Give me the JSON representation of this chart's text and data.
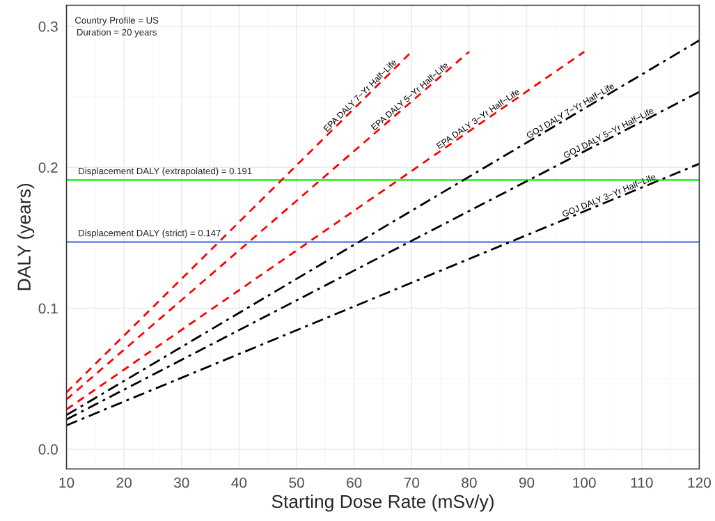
{
  "chart_data": {
    "type": "line",
    "xlabel": "Starting Dose Rate (mSv/y)",
    "ylabel": "DALY (years)",
    "xlim": [
      10,
      120
    ],
    "xticks": [
      10,
      20,
      30,
      40,
      50,
      60,
      70,
      80,
      90,
      100,
      110,
      120
    ],
    "ylim": [
      -0.014,
      0.315
    ],
    "yticks": [
      {
        "value": 0,
        "label": "0.0"
      },
      0.1,
      0.2,
      0.3
    ],
    "grid": true,
    "series": [
      {
        "name": "EPA DALY 7−Yr Half−Life",
        "color": "#ff0000",
        "line_style": "dashed",
        "x": [
          10,
          70
        ],
        "values": [
          0.0403,
          0.282
        ]
      },
      {
        "name": "EPA DALY 5−Yr Half−Life",
        "color": "#ff0000",
        "line_style": "dashed",
        "x": [
          10,
          80
        ],
        "values": [
          0.0353,
          0.282
        ]
      },
      {
        "name": "EPA DALY 3−Yr Half−Life",
        "color": "#ff0000",
        "line_style": "dashed",
        "x": [
          10,
          100
        ],
        "values": [
          0.0282,
          0.282
        ]
      },
      {
        "name": "GOJ DALY 7−Yr Half−Life",
        "color": "#000000",
        "line_style": "dashdot",
        "x": [
          10,
          120
        ],
        "values": [
          0.0242,
          0.29
        ]
      },
      {
        "name": "GOJ DALY 5−Yr Half−Life",
        "color": "#000000",
        "line_style": "dashdot",
        "x": [
          10,
          120
        ],
        "values": [
          0.0211,
          0.2535
        ]
      },
      {
        "name": "GOJ DALY 3−Yr Half−Life",
        "color": "#000000",
        "line_style": "dashdot",
        "x": [
          10,
          120
        ],
        "values": [
          0.0169,
          0.2025
        ]
      }
    ],
    "ref_lines": [
      {
        "axis": "y",
        "value": 0.191,
        "label": "Displacement DALY (extrapolated) = 0.191",
        "color": "#00ee00"
      },
      {
        "axis": "y",
        "value": 0.147,
        "label": "Displacement DALY (strict) = 0.147",
        "color": "#3366dd"
      }
    ],
    "annotations": [
      "Country Profile = US\nDuration = 20 years"
    ]
  }
}
